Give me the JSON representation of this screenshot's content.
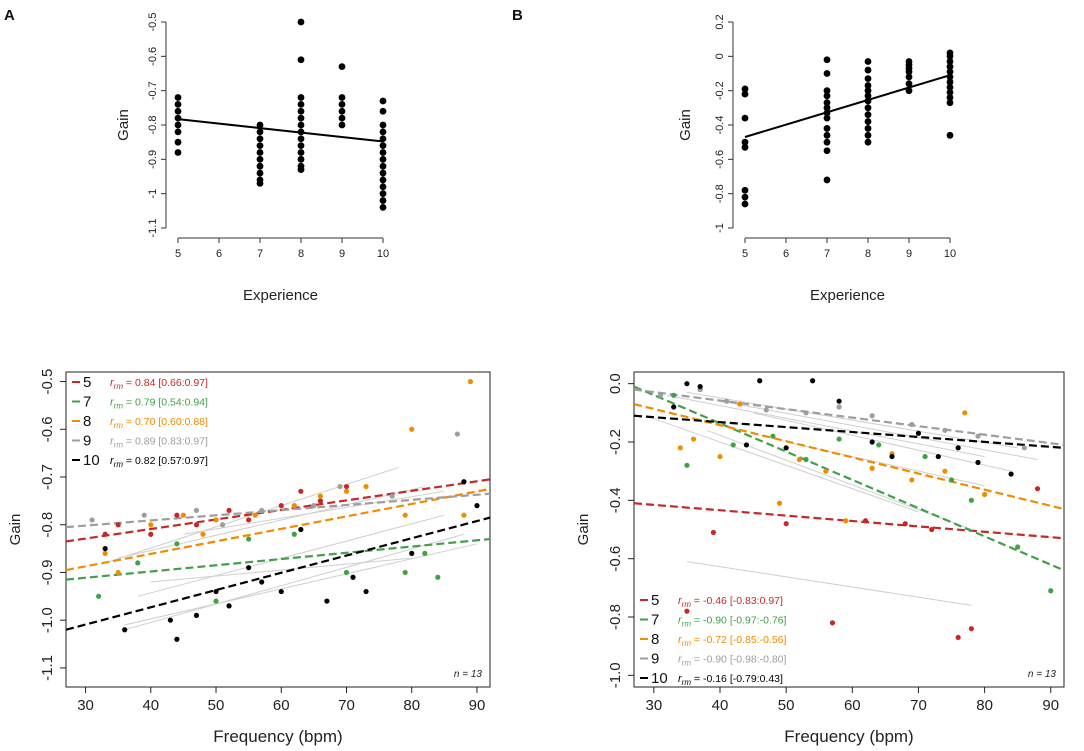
{
  "figure": {
    "panel_labels": [
      "A",
      "B"
    ]
  },
  "colors": {
    "5": "#c62828",
    "7": "#43a047",
    "8": "#ef8c00",
    "9": "#9e9e9e",
    "10": "#000000",
    "thin": "#cfcfcf"
  },
  "chart_data": [
    {
      "id": "A-top",
      "type": "scatter",
      "panel": "A",
      "xlabel": "Experience",
      "ylabel": "Gain",
      "xlim": [
        5,
        10
      ],
      "ylim": [
        -1.1,
        -0.5
      ],
      "xticks": [
        5,
        6,
        7,
        8,
        9,
        10
      ],
      "yticks": [
        -0.5,
        -0.6,
        -0.7,
        -0.8,
        -0.9,
        -1,
        -1.1
      ],
      "ytick_labels": [
        "-0.5",
        "-0.6",
        "-0.7",
        "-0.8",
        "-0.9",
        "-1",
        "-1.1"
      ],
      "regression": {
        "x": [
          5,
          10
        ],
        "y": [
          -0.783,
          -0.848
        ]
      },
      "points": [
        {
          "x": 5,
          "y": [
            -0.72,
            -0.74,
            -0.76,
            -0.78,
            -0.8,
            -0.82,
            -0.85,
            -0.88
          ]
        },
        {
          "x": 7,
          "y": [
            -0.8,
            -0.82,
            -0.84,
            -0.86,
            -0.88,
            -0.9,
            -0.92,
            -0.94,
            -0.96,
            -0.97
          ]
        },
        {
          "x": 8,
          "y": [
            -0.5,
            -0.61,
            -0.72,
            -0.74,
            -0.76,
            -0.78,
            -0.8,
            -0.82,
            -0.84,
            -0.86,
            -0.88,
            -0.9,
            -0.92,
            -0.93
          ]
        },
        {
          "x": 9,
          "y": [
            -0.63,
            -0.72,
            -0.74,
            -0.76,
            -0.78,
            -0.8
          ]
        },
        {
          "x": 10,
          "y": [
            -0.73,
            -0.76,
            -0.8,
            -0.82,
            -0.84,
            -0.86,
            -0.88,
            -0.9,
            -0.92,
            -0.94,
            -0.96,
            -0.98,
            -1.0,
            -1.02,
            -1.04
          ]
        }
      ]
    },
    {
      "id": "B-top",
      "type": "scatter",
      "panel": "B",
      "xlabel": "Experience",
      "ylabel": "Gain",
      "xlim": [
        5,
        10
      ],
      "ylim": [
        -1,
        0.2
      ],
      "xticks": [
        5,
        6,
        7,
        8,
        9,
        10
      ],
      "yticks": [
        0.2,
        0,
        -0.2,
        -0.4,
        -0.6,
        -0.8,
        -1
      ],
      "ytick_labels": [
        "0.2",
        "0",
        "-0.2",
        "-0.4",
        "-0.6",
        "-0.8",
        "-1"
      ],
      "regression": {
        "x": [
          5,
          10
        ],
        "y": [
          -0.47,
          -0.11
        ]
      },
      "points": [
        {
          "x": 5,
          "y": [
            -0.19,
            -0.22,
            -0.36,
            -0.5,
            -0.53,
            -0.78,
            -0.82,
            -0.86
          ]
        },
        {
          "x": 7,
          "y": [
            -0.02,
            -0.1,
            -0.2,
            -0.23,
            -0.27,
            -0.3,
            -0.33,
            -0.36,
            -0.42,
            -0.46,
            -0.5,
            -0.55,
            -0.72
          ]
        },
        {
          "x": 8,
          "y": [
            -0.03,
            -0.08,
            -0.13,
            -0.17,
            -0.2,
            -0.23,
            -0.26,
            -0.3,
            -0.34,
            -0.38,
            -0.42,
            -0.46,
            -0.5
          ]
        },
        {
          "x": 9,
          "y": [
            -0.03,
            -0.05,
            -0.07,
            -0.09,
            -0.12,
            -0.16,
            -0.2
          ]
        },
        {
          "x": 10,
          "y": [
            0.02,
            0.0,
            -0.03,
            -0.06,
            -0.09,
            -0.12,
            -0.15,
            -0.18,
            -0.21,
            -0.24,
            -0.27,
            -0.46
          ]
        }
      ]
    },
    {
      "id": "A-bottom",
      "type": "scatter",
      "panel": "A",
      "xlabel": "Frequency (bpm)",
      "ylabel": "Gain",
      "xlim": [
        27,
        92
      ],
      "ylim": [
        -1.14,
        -0.48
      ],
      "xticks": [
        30,
        40,
        50,
        60,
        70,
        80,
        90
      ],
      "yticks": [
        -0.5,
        -0.6,
        -0.7,
        -0.8,
        -0.9,
        -1.0,
        -1.1
      ],
      "ytick_labels": [
        "-0.5",
        "-0.6",
        "-0.7",
        "-0.8",
        "-0.9",
        "-1.0",
        "-1.1"
      ],
      "n_label": "n = 13",
      "legend": [
        {
          "key": "5",
          "stat": " = 0.84 [0.66:0.97]"
        },
        {
          "key": "7",
          "stat": " = 0.79 [0.54:0.94]"
        },
        {
          "key": "8",
          "stat": " = 0.70 [0.60:0.88]"
        },
        {
          "key": "9",
          "stat": " = 0.89 [0.83:0.97]"
        },
        {
          "key": "10",
          "stat": " = 0.82 [0.57:0.97]"
        }
      ],
      "trend_lines": [
        {
          "group": "5",
          "x": [
            27,
            92
          ],
          "y": [
            -0.835,
            -0.705
          ]
        },
        {
          "group": "7",
          "x": [
            27,
            92
          ],
          "y": [
            -0.915,
            -0.83
          ]
        },
        {
          "group": "8",
          "x": [
            27,
            92
          ],
          "y": [
            -0.895,
            -0.725
          ]
        },
        {
          "group": "9",
          "x": [
            27,
            92
          ],
          "y": [
            -0.805,
            -0.735
          ]
        },
        {
          "group": "10",
          "x": [
            27,
            92
          ],
          "y": [
            -1.02,
            -0.785
          ]
        }
      ],
      "thin_lines": [
        {
          "x": [
            33,
            78
          ],
          "y": [
            -0.88,
            -0.68
          ]
        },
        {
          "x": [
            35,
            82
          ],
          "y": [
            -0.87,
            -0.72
          ]
        },
        {
          "x": [
            38,
            85
          ],
          "y": [
            -0.95,
            -0.78
          ]
        },
        {
          "x": [
            36,
            88
          ],
          "y": [
            -1.02,
            -0.82
          ]
        },
        {
          "x": [
            36,
            90
          ],
          "y": [
            -1.01,
            -0.84
          ]
        },
        {
          "x": [
            40,
            80
          ],
          "y": [
            -0.92,
            -0.87
          ]
        },
        {
          "x": [
            45,
            85
          ],
          "y": [
            -0.82,
            -0.73
          ]
        }
      ],
      "series": [
        {
          "group": "5",
          "x": [
            33,
            35,
            40,
            44,
            47,
            52,
            55,
            60,
            63,
            66,
            70
          ],
          "y": [
            -0.82,
            -0.8,
            -0.82,
            -0.78,
            -0.8,
            -0.77,
            -0.79,
            -0.76,
            -0.73,
            -0.75,
            -0.72
          ]
        },
        {
          "group": "7",
          "x": [
            32,
            38,
            44,
            50,
            55,
            62,
            70,
            79,
            82,
            84
          ],
          "y": [
            -0.95,
            -0.88,
            -0.84,
            -0.96,
            -0.83,
            -0.82,
            -0.9,
            -0.9,
            -0.86,
            -0.91
          ]
        },
        {
          "group": "8",
          "x": [
            33,
            35,
            40,
            45,
            48,
            50,
            56,
            62,
            66,
            70,
            73,
            79,
            80,
            88,
            89
          ],
          "y": [
            -0.86,
            -0.9,
            -0.8,
            -0.78,
            -0.82,
            -0.79,
            -0.78,
            -0.76,
            -0.74,
            -0.73,
            -0.72,
            -0.78,
            -0.6,
            -0.78,
            -0.5
          ]
        },
        {
          "group": "9",
          "x": [
            31,
            39,
            47,
            51,
            57,
            65,
            69,
            77,
            87
          ],
          "y": [
            -0.79,
            -0.78,
            -0.77,
            -0.8,
            -0.77,
            -0.76,
            -0.72,
            -0.74,
            -0.61
          ]
        },
        {
          "group": "10",
          "x": [
            33,
            36,
            43,
            44,
            47,
            50,
            52,
            55,
            57,
            60,
            63,
            67,
            71,
            73,
            80,
            88,
            90
          ],
          "y": [
            -0.85,
            -1.02,
            -1.0,
            -1.04,
            -0.99,
            -0.94,
            -0.97,
            -0.89,
            -0.92,
            -0.94,
            -0.81,
            -0.96,
            -0.91,
            -0.94,
            -0.86,
            -0.71,
            -0.76
          ]
        }
      ]
    },
    {
      "id": "B-bottom",
      "type": "scatter",
      "panel": "B",
      "xlabel": "Frequency (bpm)",
      "ylabel": "Gain",
      "xlim": [
        27,
        92
      ],
      "ylim": [
        -1.04,
        0.04
      ],
      "xticks": [
        30,
        40,
        50,
        60,
        70,
        80,
        90
      ],
      "yticks": [
        0.0,
        -0.2,
        -0.4,
        -0.6,
        -0.8,
        -1.0
      ],
      "ytick_labels": [
        "0.0",
        "-0.2",
        "-0.4",
        "-0.6",
        "-0.8",
        "-1.0"
      ],
      "n_label": "n = 13",
      "legend": [
        {
          "key": "5",
          "stat": " = -0.46 [-0.83:0.97]"
        },
        {
          "key": "7",
          "stat": " = -0.90 [-0.97:-0.76]"
        },
        {
          "key": "8",
          "stat": " = -0.72 [-0.85:-0.56]"
        },
        {
          "key": "9",
          "stat": " = -0.90 [-0.98:-0.80]"
        },
        {
          "key": "10",
          "stat": " = -0.16 [-0.79:0.43]"
        }
      ],
      "trend_lines": [
        {
          "group": "5",
          "x": [
            27,
            92
          ],
          "y": [
            -0.41,
            -0.53
          ]
        },
        {
          "group": "7",
          "x": [
            27,
            92
          ],
          "y": [
            -0.01,
            -0.64
          ]
        },
        {
          "group": "8",
          "x": [
            27,
            92
          ],
          "y": [
            -0.07,
            -0.43
          ]
        },
        {
          "group": "9",
          "x": [
            27,
            92
          ],
          "y": [
            -0.02,
            -0.21
          ]
        },
        {
          "group": "10",
          "x": [
            27,
            92
          ],
          "y": [
            -0.11,
            -0.22
          ]
        }
      ],
      "thin_lines": [
        {
          "x": [
            35,
            78
          ],
          "y": [
            -0.61,
            -0.76
          ]
        },
        {
          "x": [
            32,
            80
          ],
          "y": [
            -0.04,
            -0.25
          ]
        },
        {
          "x": [
            35,
            85
          ],
          "y": [
            -0.03,
            -0.22
          ]
        },
        {
          "x": [
            40,
            88
          ],
          "y": [
            -0.06,
            -0.26
          ]
        },
        {
          "x": [
            30,
            70
          ],
          "y": [
            -0.12,
            -0.44
          ]
        },
        {
          "x": [
            38,
            78
          ],
          "y": [
            -0.16,
            -0.5
          ]
        },
        {
          "x": [
            45,
            84
          ],
          "y": [
            -0.1,
            -0.3
          ]
        },
        {
          "x": [
            50,
            80
          ],
          "y": [
            -0.2,
            -0.35
          ]
        }
      ],
      "series": [
        {
          "group": "5",
          "x": [
            35,
            39,
            50,
            57,
            62,
            68,
            72,
            76,
            78,
            88
          ],
          "y": [
            -0.78,
            -0.51,
            -0.48,
            -0.82,
            -0.47,
            -0.48,
            -0.5,
            -0.87,
            -0.84,
            -0.36
          ]
        },
        {
          "group": "7",
          "x": [
            33,
            35,
            37,
            42,
            48,
            53,
            58,
            64,
            71,
            75,
            78,
            85,
            90
          ],
          "y": [
            -0.04,
            -0.28,
            -0.02,
            -0.21,
            -0.18,
            -0.26,
            -0.19,
            -0.21,
            -0.25,
            -0.33,
            -0.4,
            -0.56,
            -0.71
          ]
        },
        {
          "group": "8",
          "x": [
            34,
            36,
            40,
            43,
            49,
            52,
            56,
            59,
            63,
            66,
            69,
            74,
            77,
            80
          ],
          "y": [
            -0.22,
            -0.19,
            -0.25,
            -0.07,
            -0.41,
            -0.26,
            -0.3,
            -0.47,
            -0.29,
            -0.24,
            -0.33,
            -0.3,
            -0.1,
            -0.38
          ]
        },
        {
          "group": "9",
          "x": [
            31,
            37,
            41,
            47,
            53,
            58,
            63,
            69,
            74,
            79,
            86
          ],
          "y": [
            -0.04,
            -0.02,
            -0.06,
            -0.09,
            -0.1,
            -0.08,
            -0.11,
            -0.14,
            -0.16,
            -0.18,
            -0.22
          ]
        },
        {
          "group": "10",
          "x": [
            33,
            35,
            37,
            44,
            46,
            50,
            54,
            58,
            63,
            66,
            70,
            73,
            76,
            79,
            84
          ],
          "y": [
            -0.08,
            0.0,
            -0.01,
            -0.21,
            0.01,
            -0.22,
            0.01,
            -0.06,
            -0.2,
            -0.25,
            -0.17,
            -0.25,
            -0.22,
            -0.27,
            -0.31
          ]
        }
      ]
    }
  ]
}
